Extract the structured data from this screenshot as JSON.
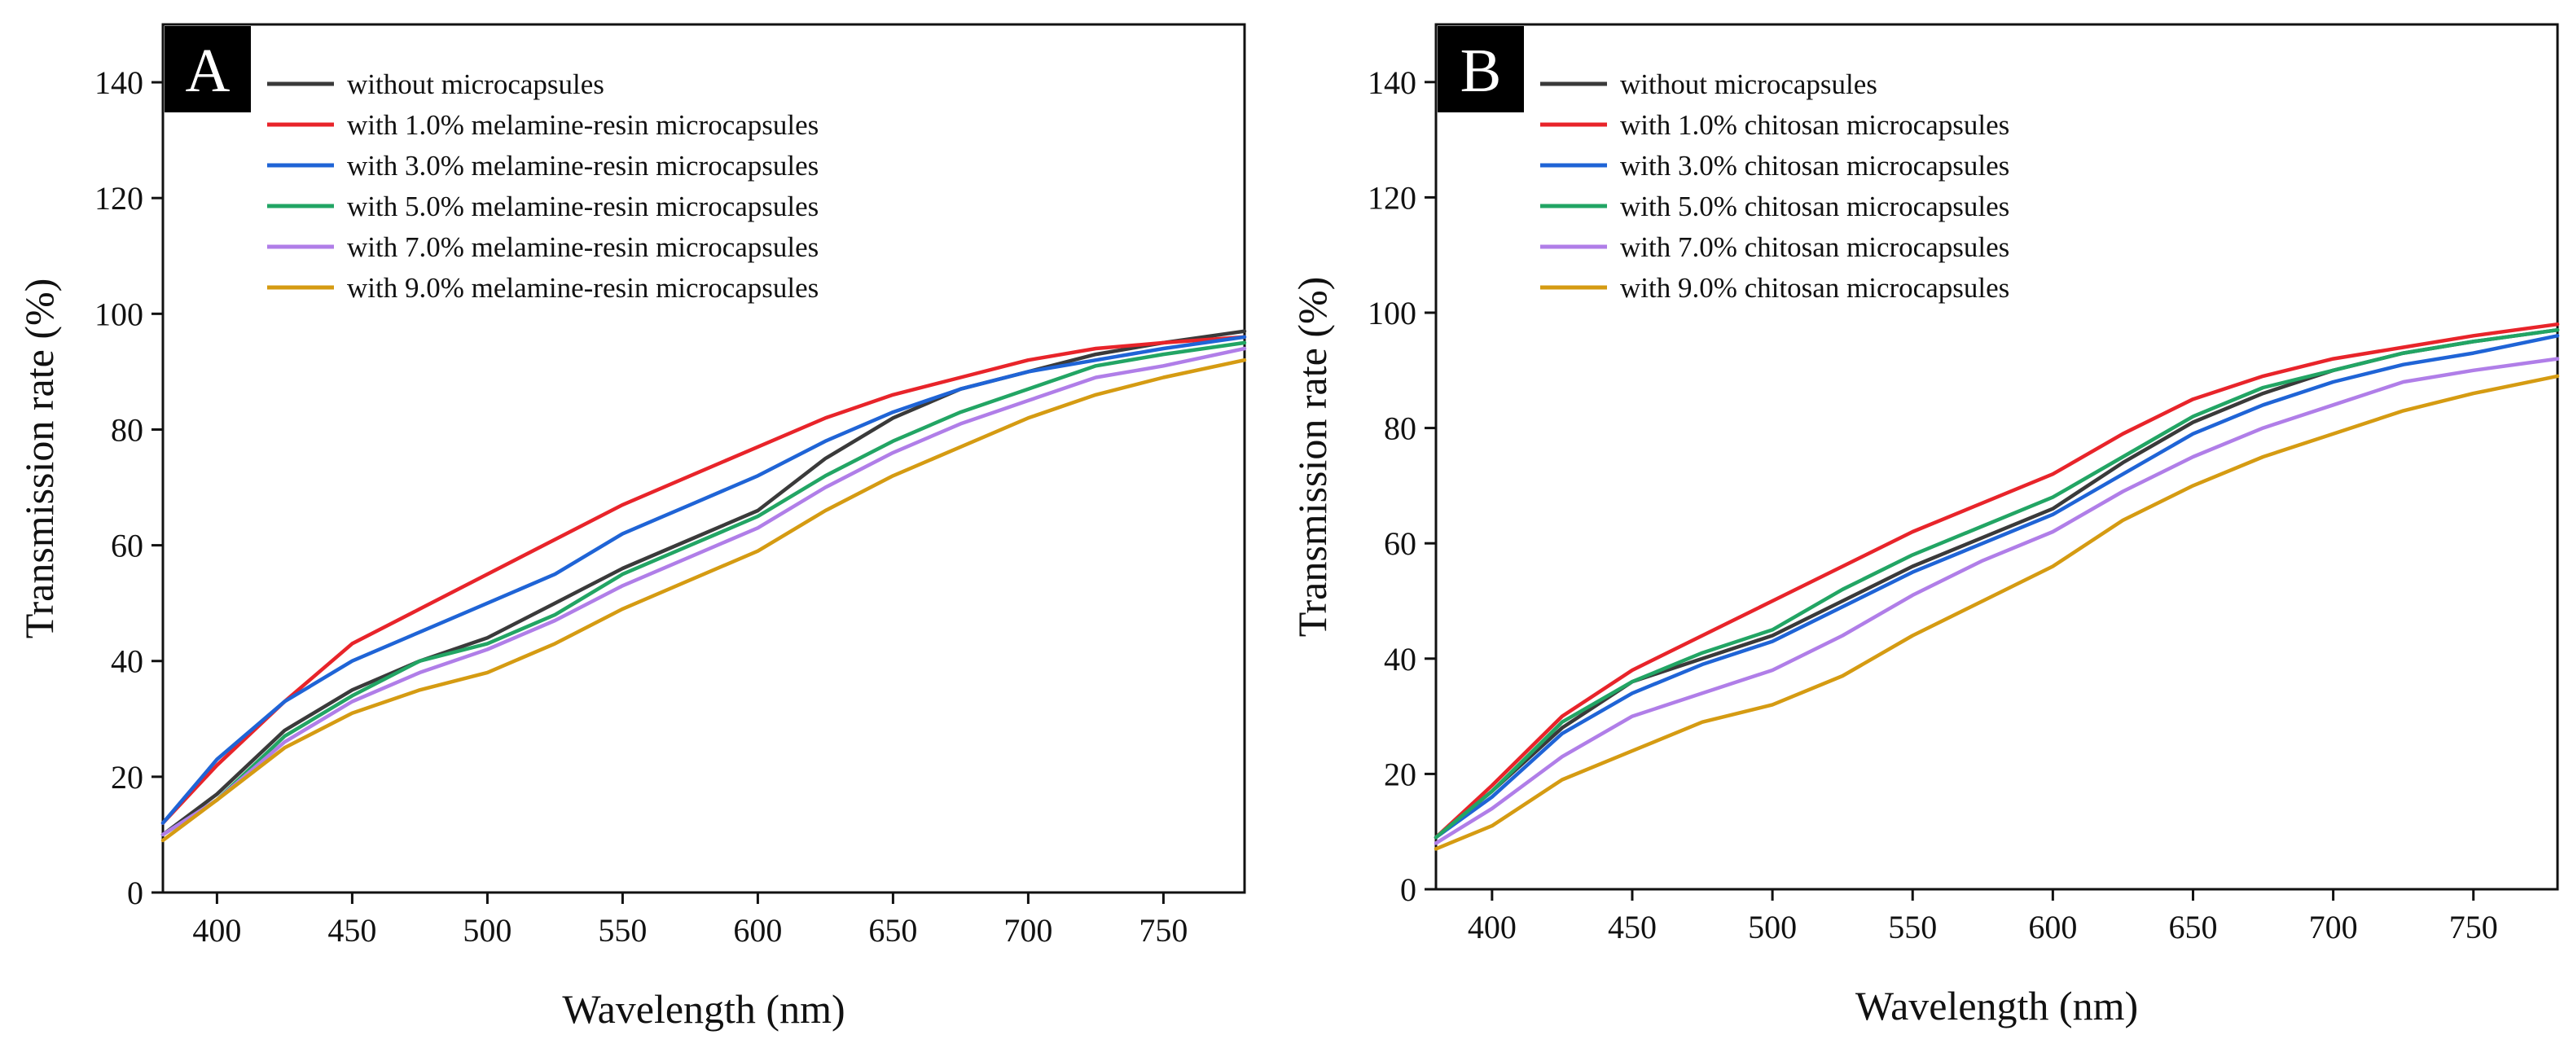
{
  "figure": {
    "panels": [
      "A",
      "B"
    ]
  },
  "chart_data": [
    {
      "type": "line",
      "panel_label": "A",
      "title": "",
      "xlabel": "Wavelength (nm)",
      "ylabel": "Transmission rate (%)",
      "xlim": [
        380,
        780
      ],
      "ylim": [
        0,
        150
      ],
      "xticks": [
        400,
        450,
        500,
        550,
        600,
        650,
        700,
        750
      ],
      "yticks": [
        0,
        20,
        40,
        60,
        80,
        100,
        120,
        140
      ],
      "grid": false,
      "legend_position": "top-left",
      "x": [
        380,
        400,
        425,
        450,
        475,
        500,
        525,
        550,
        575,
        600,
        625,
        650,
        675,
        700,
        725,
        750,
        780
      ],
      "series": [
        {
          "name": "without microcapsules",
          "color": "#3a3a3a",
          "values": [
            10,
            17,
            28,
            35,
            40,
            44,
            50,
            56,
            61,
            66,
            75,
            82,
            87,
            90,
            93,
            95,
            97
          ]
        },
        {
          "name": "with 1.0% melamine-resin microcapsules",
          "color": "#e8242a",
          "values": [
            12,
            22,
            33,
            43,
            49,
            55,
            61,
            67,
            72,
            77,
            82,
            86,
            89,
            92,
            94,
            95,
            96
          ]
        },
        {
          "name": "with 3.0% melamine-resin microcapsules",
          "color": "#1f64d6",
          "values": [
            12,
            23,
            33,
            40,
            45,
            50,
            55,
            62,
            67,
            72,
            78,
            83,
            87,
            90,
            92,
            94,
            96
          ]
        },
        {
          "name": "with 5.0% melamine-resin microcapsules",
          "color": "#22a564",
          "values": [
            10,
            16,
            27,
            34,
            40,
            43,
            48,
            55,
            60,
            65,
            72,
            78,
            83,
            87,
            91,
            93,
            95
          ]
        },
        {
          "name": "with 7.0% melamine-resin microcapsules",
          "color": "#b07ee8",
          "values": [
            10,
            16,
            26,
            33,
            38,
            42,
            47,
            53,
            58,
            63,
            70,
            76,
            81,
            85,
            89,
            91,
            94
          ]
        },
        {
          "name": "with 9.0% melamine-resin microcapsules",
          "color": "#d59b12",
          "values": [
            9,
            16,
            25,
            31,
            35,
            38,
            43,
            49,
            54,
            59,
            66,
            72,
            77,
            82,
            86,
            89,
            92
          ]
        }
      ]
    },
    {
      "type": "line",
      "panel_label": "B",
      "title": "",
      "xlabel": "Wavelength (nm)",
      "ylabel": "Transmission rate (%)",
      "xlim": [
        380,
        780
      ],
      "ylim": [
        0,
        150
      ],
      "xticks": [
        400,
        450,
        500,
        550,
        600,
        650,
        700,
        750
      ],
      "yticks": [
        0,
        20,
        40,
        60,
        80,
        100,
        120,
        140
      ],
      "grid": false,
      "legend_position": "top-left",
      "x": [
        380,
        400,
        425,
        450,
        475,
        500,
        525,
        550,
        575,
        600,
        625,
        650,
        675,
        700,
        725,
        750,
        780
      ],
      "series": [
        {
          "name": "without microcapsules",
          "color": "#3a3a3a",
          "values": [
            9,
            17,
            28,
            36,
            40,
            44,
            50,
            56,
            61,
            66,
            74,
            81,
            86,
            90,
            93,
            95,
            97
          ]
        },
        {
          "name": "with 1.0% chitosan microcapsules",
          "color": "#e8242a",
          "values": [
            9,
            18,
            30,
            38,
            44,
            50,
            56,
            62,
            67,
            72,
            79,
            85,
            89,
            92,
            94,
            96,
            98
          ]
        },
        {
          "name": "with 3.0% chitosan microcapsules",
          "color": "#1f64d6",
          "values": [
            9,
            16,
            27,
            34,
            39,
            43,
            49,
            55,
            60,
            65,
            72,
            79,
            84,
            88,
            91,
            93,
            96
          ]
        },
        {
          "name": "with 5.0% chitosan microcapsules",
          "color": "#22a564",
          "values": [
            9,
            17,
            29,
            36,
            41,
            45,
            52,
            58,
            63,
            68,
            75,
            82,
            87,
            90,
            93,
            95,
            97
          ]
        },
        {
          "name": "with 7.0% chitosan microcapsules",
          "color": "#b07ee8",
          "values": [
            8,
            14,
            23,
            30,
            34,
            38,
            44,
            51,
            57,
            62,
            69,
            75,
            80,
            84,
            88,
            90,
            92
          ]
        },
        {
          "name": "with 9.0% chitosan microcapsules",
          "color": "#d59b12",
          "values": [
            7,
            11,
            19,
            24,
            29,
            32,
            37,
            44,
            50,
            56,
            64,
            70,
            75,
            79,
            83,
            86,
            89
          ]
        }
      ]
    }
  ]
}
